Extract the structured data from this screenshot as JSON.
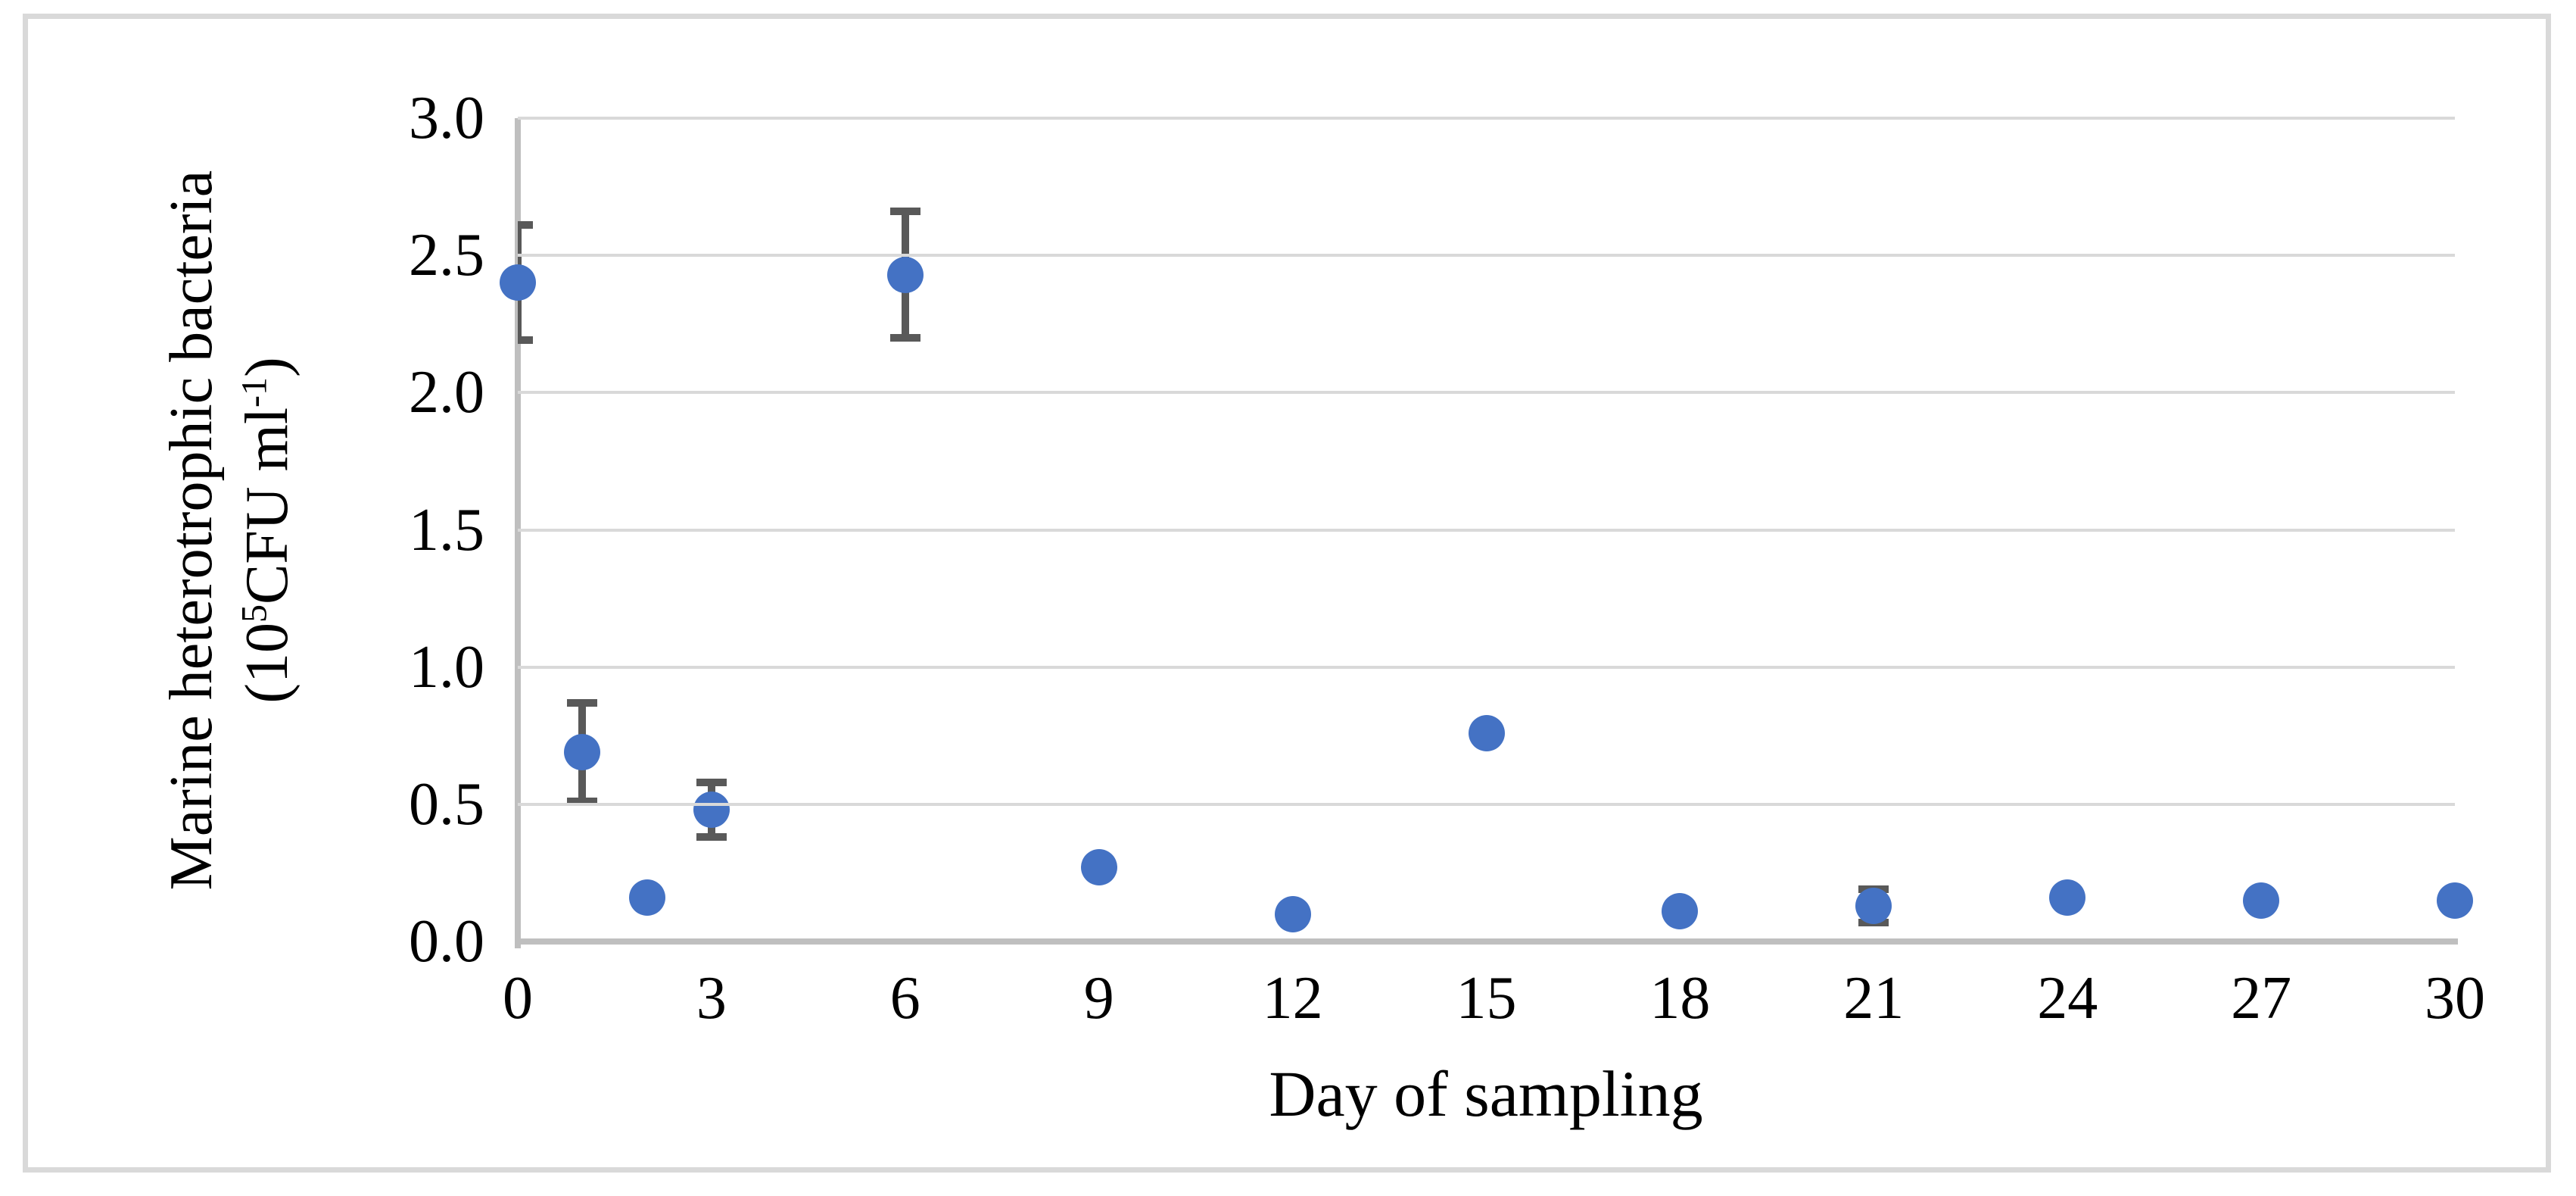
{
  "colors": {
    "marker": "#4472C4",
    "error_bar": "#595959",
    "gridline": "#D9D9D9",
    "axis_line": "#BFBFBF",
    "frame_border": "#D9D9D9",
    "text": "#000000",
    "background": "#FFFFFF"
  },
  "chart_data": {
    "type": "scatter",
    "title": "",
    "xlabel": "Day of sampling",
    "ylabel_line1": "Marine heterotrophic bacteria",
    "ylabel_line2": {
      "prefix": "(10",
      "sup1": "5",
      "mid": "CFU ml",
      "sup2": "-1",
      "suffix": ")"
    },
    "xlim": [
      0,
      30
    ],
    "ylim": [
      0.0,
      3.0
    ],
    "x_ticks": [
      0,
      3,
      6,
      9,
      12,
      15,
      18,
      21,
      24,
      27,
      30
    ],
    "y_ticks": [
      "3.0",
      "2.5",
      "2.0",
      "1.5",
      "1.0",
      "0.5",
      "0.0"
    ],
    "grid": "horizontal-only",
    "legend": "none",
    "series": [
      {
        "name": "Marine heterotrophic bacteria",
        "marker": "circle",
        "error_bars": "vertical, capped, shown only where listed",
        "points": [
          {
            "x": 0,
            "y": 2.4,
            "err": 0.21
          },
          {
            "x": 1,
            "y": 0.69,
            "err": 0.18
          },
          {
            "x": 2,
            "y": 0.16,
            "err": 0
          },
          {
            "x": 3,
            "y": 0.48,
            "err": 0.1
          },
          {
            "x": 6,
            "y": 2.43,
            "err": 0.23
          },
          {
            "x": 9,
            "y": 0.27,
            "err": 0
          },
          {
            "x": 12,
            "y": 0.1,
            "err": 0
          },
          {
            "x": 15,
            "y": 0.76,
            "err": 0
          },
          {
            "x": 18,
            "y": 0.11,
            "err": 0
          },
          {
            "x": 21,
            "y": 0.13,
            "err": 0.06
          },
          {
            "x": 24,
            "y": 0.16,
            "err": 0
          },
          {
            "x": 27,
            "y": 0.15,
            "err": 0
          },
          {
            "x": 30,
            "y": 0.15,
            "err": 0
          }
        ]
      }
    ]
  }
}
